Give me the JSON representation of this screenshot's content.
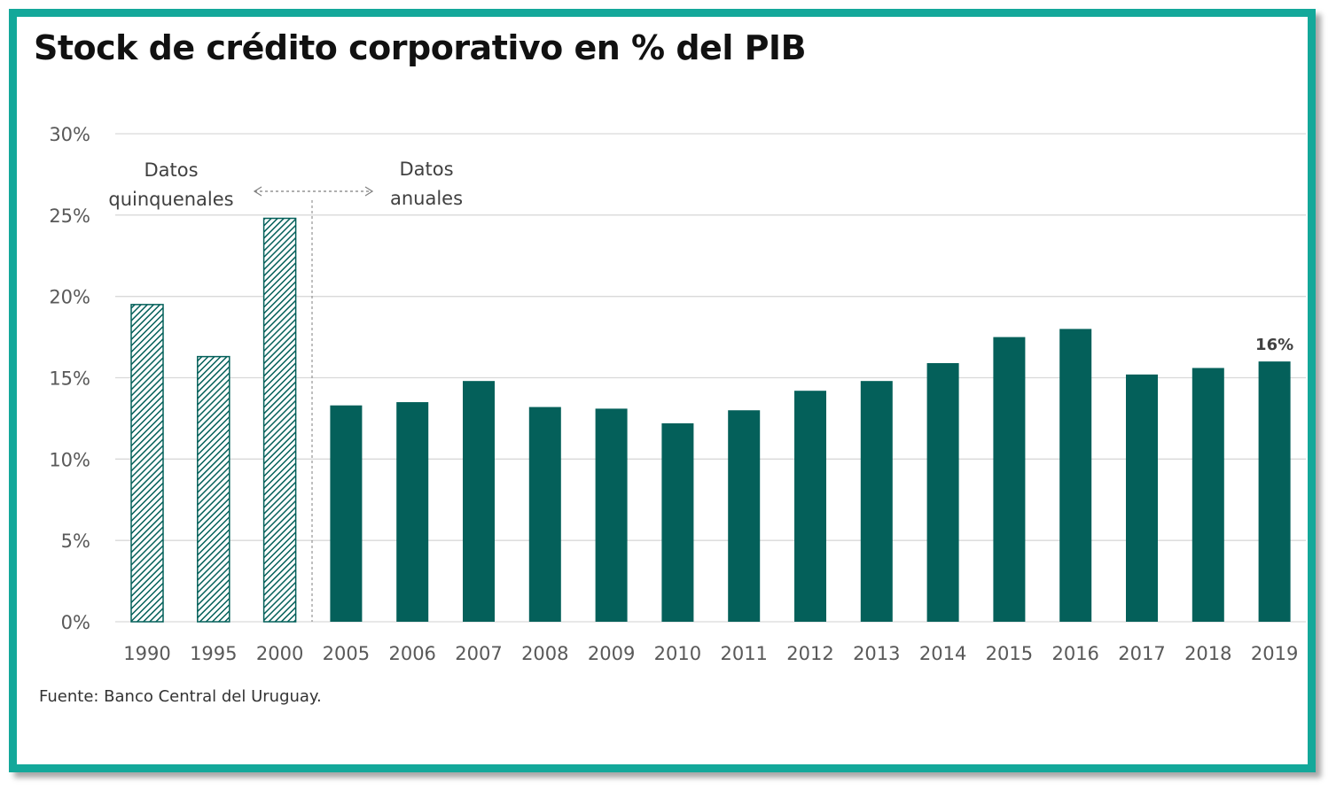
{
  "title": "Stock de crédito corporativo en % del PIB",
  "source": "Fuente: Banco Central del Uruguay.",
  "annotations": {
    "quinquennial_line1": "Datos",
    "quinquennial_line2": "quinquenales",
    "annual_line1": "Datos",
    "annual_line2": "anuales"
  },
  "colors": {
    "frame": "#13a89a",
    "bar": "#04605a",
    "hatch": "#04605a",
    "grid": "#d9d9d9",
    "text": "#595959"
  },
  "chart_data": {
    "type": "bar",
    "title": "Stock de crédito corporativo en % del PIB",
    "xlabel": "",
    "ylabel": "",
    "ylim": [
      0,
      30
    ],
    "yticks": [
      "0%",
      "5%",
      "10%",
      "15%",
      "20%",
      "25%",
      "30%"
    ],
    "grid": true,
    "categories": [
      "1990",
      "1995",
      "2000",
      "2005",
      "2006",
      "2007",
      "2008",
      "2009",
      "2010",
      "2011",
      "2012",
      "2013",
      "2014",
      "2015",
      "2016",
      "2017",
      "2018",
      "2019"
    ],
    "values": [
      19.5,
      16.3,
      24.8,
      13.3,
      13.5,
      14.8,
      13.2,
      13.1,
      12.2,
      13.0,
      14.2,
      14.8,
      15.9,
      17.5,
      18.0,
      15.2,
      15.6,
      16.0
    ],
    "series_style": [
      "hatched",
      "hatched",
      "hatched",
      "solid",
      "solid",
      "solid",
      "solid",
      "solid",
      "solid",
      "solid",
      "solid",
      "solid",
      "solid",
      "solid",
      "solid",
      "solid",
      "solid",
      "solid"
    ],
    "data_labels": [
      {
        "category": "2019",
        "text": "16%"
      }
    ]
  }
}
